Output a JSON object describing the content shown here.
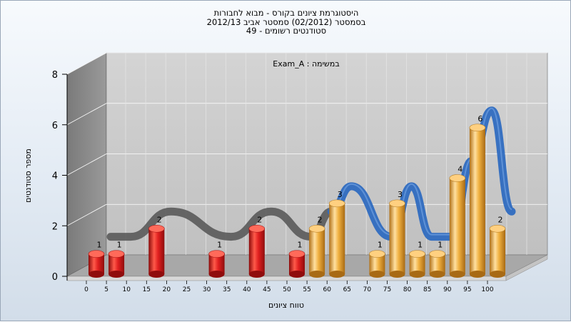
{
  "chart_data": {
    "type": "bar",
    "title_lines": [
      "היסטוגרמת ציונים בקורס - מבוא לחבורות",
      "בסמסטר  (02/2012)  סמסטר אביב 2012/13",
      "סטודנטים רשומים - 49"
    ],
    "subtitle": "Exam_A : במשימה",
    "xlabel": "טווח ציונים",
    "ylabel": "מספר סטודנטים",
    "x_ticks": [
      "0",
      "5",
      "10",
      "15",
      "20",
      "25",
      "30",
      "35",
      "40",
      "45",
      "50",
      "55",
      "60",
      "65",
      "70",
      "75",
      "80",
      "85",
      "90",
      "95",
      "100"
    ],
    "y_ticks": [
      0,
      2,
      4,
      6,
      8
    ],
    "ylim": [
      0,
      8
    ],
    "grid": true,
    "legend": "none",
    "bars": [
      {
        "x": 0,
        "value": 1,
        "group": "red"
      },
      {
        "x": 5,
        "value": 1,
        "group": "red"
      },
      {
        "x": 15,
        "value": 2,
        "group": "red"
      },
      {
        "x": 30,
        "value": 1,
        "group": "red"
      },
      {
        "x": 40,
        "value": 2,
        "group": "red"
      },
      {
        "x": 50,
        "value": 1,
        "group": "red"
      },
      {
        "x": 55,
        "value": 2,
        "group": "orange"
      },
      {
        "x": 60,
        "value": 3,
        "group": "orange"
      },
      {
        "x": 70,
        "value": 1,
        "group": "orange"
      },
      {
        "x": 75,
        "value": 3,
        "group": "orange"
      },
      {
        "x": 80,
        "value": 1,
        "group": "orange"
      },
      {
        "x": 85,
        "value": 1,
        "group": "orange"
      },
      {
        "x": 90,
        "value": 4,
        "group": "orange"
      },
      {
        "x": 95,
        "value": 6,
        "group": "orange"
      },
      {
        "x": 100,
        "value": 2,
        "group": "orange"
      }
    ],
    "colors": {
      "red_bar": "#e02020",
      "orange_bar": "#f0b040",
      "ribbon_gray": "#5a5a5a",
      "ribbon_blue": "#2f6cc0",
      "plot_back": "#c8c8c8",
      "plot_side": "#8a8a8a"
    }
  }
}
